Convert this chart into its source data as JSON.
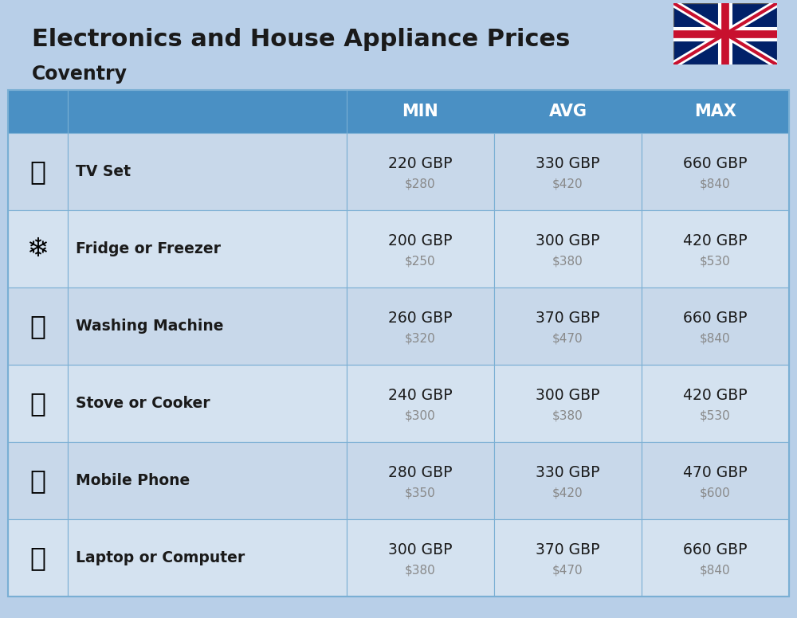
{
  "title": "Electronics and House Appliance Prices",
  "subtitle": "Coventry",
  "bg_color": "#b8cfe8",
  "header_color": "#4a90c4",
  "header_text_color": "#ffffff",
  "row_bg_color": "#c8d8ea",
  "row_alt_bg_color": "#d4e2f0",
  "border_color": "#7aafd4",
  "columns": [
    "MIN",
    "AVG",
    "MAX"
  ],
  "rows": [
    {
      "label": "TV Set",
      "emoji": "📺",
      "min_gbp": "220 GBP",
      "min_usd": "$280",
      "avg_gbp": "330 GBP",
      "avg_usd": "$420",
      "max_gbp": "660 GBP",
      "max_usd": "$840"
    },
    {
      "label": "Fridge or Freezer",
      "emoji": "🍧",
      "min_gbp": "200 GBP",
      "min_usd": "$250",
      "avg_gbp": "300 GBP",
      "avg_usd": "$380",
      "max_gbp": "420 GBP",
      "max_usd": "$530"
    },
    {
      "label": "Washing Machine",
      "emoji": "🧹",
      "min_gbp": "260 GBP",
      "min_usd": "$320",
      "avg_gbp": "370 GBP",
      "avg_usd": "$470",
      "max_gbp": "660 GBP",
      "max_usd": "$840"
    },
    {
      "label": "Stove or Cooker",
      "emoji": "🔥",
      "min_gbp": "240 GBP",
      "min_usd": "$300",
      "avg_gbp": "300 GBP",
      "avg_usd": "$380",
      "max_gbp": "420 GBP",
      "max_usd": "$530"
    },
    {
      "label": "Mobile Phone",
      "emoji": "📱",
      "min_gbp": "280 GBP",
      "min_usd": "$350",
      "avg_gbp": "330 GBP",
      "avg_usd": "$420",
      "max_gbp": "470 GBP",
      "max_usd": "$600"
    },
    {
      "label": "Laptop or Computer",
      "emoji": "💻",
      "min_gbp": "300 GBP",
      "min_usd": "$380",
      "avg_gbp": "370 GBP",
      "avg_usd": "$470",
      "max_gbp": "660 GBP",
      "max_usd": "$840"
    }
  ],
  "icon_emojis": [
    "📺",
    "❄️",
    "📻",
    "🔥",
    "📱",
    "💻"
  ],
  "icon_images": [
    "tv",
    "fridge",
    "washing",
    "stove",
    "phone",
    "laptop"
  ]
}
